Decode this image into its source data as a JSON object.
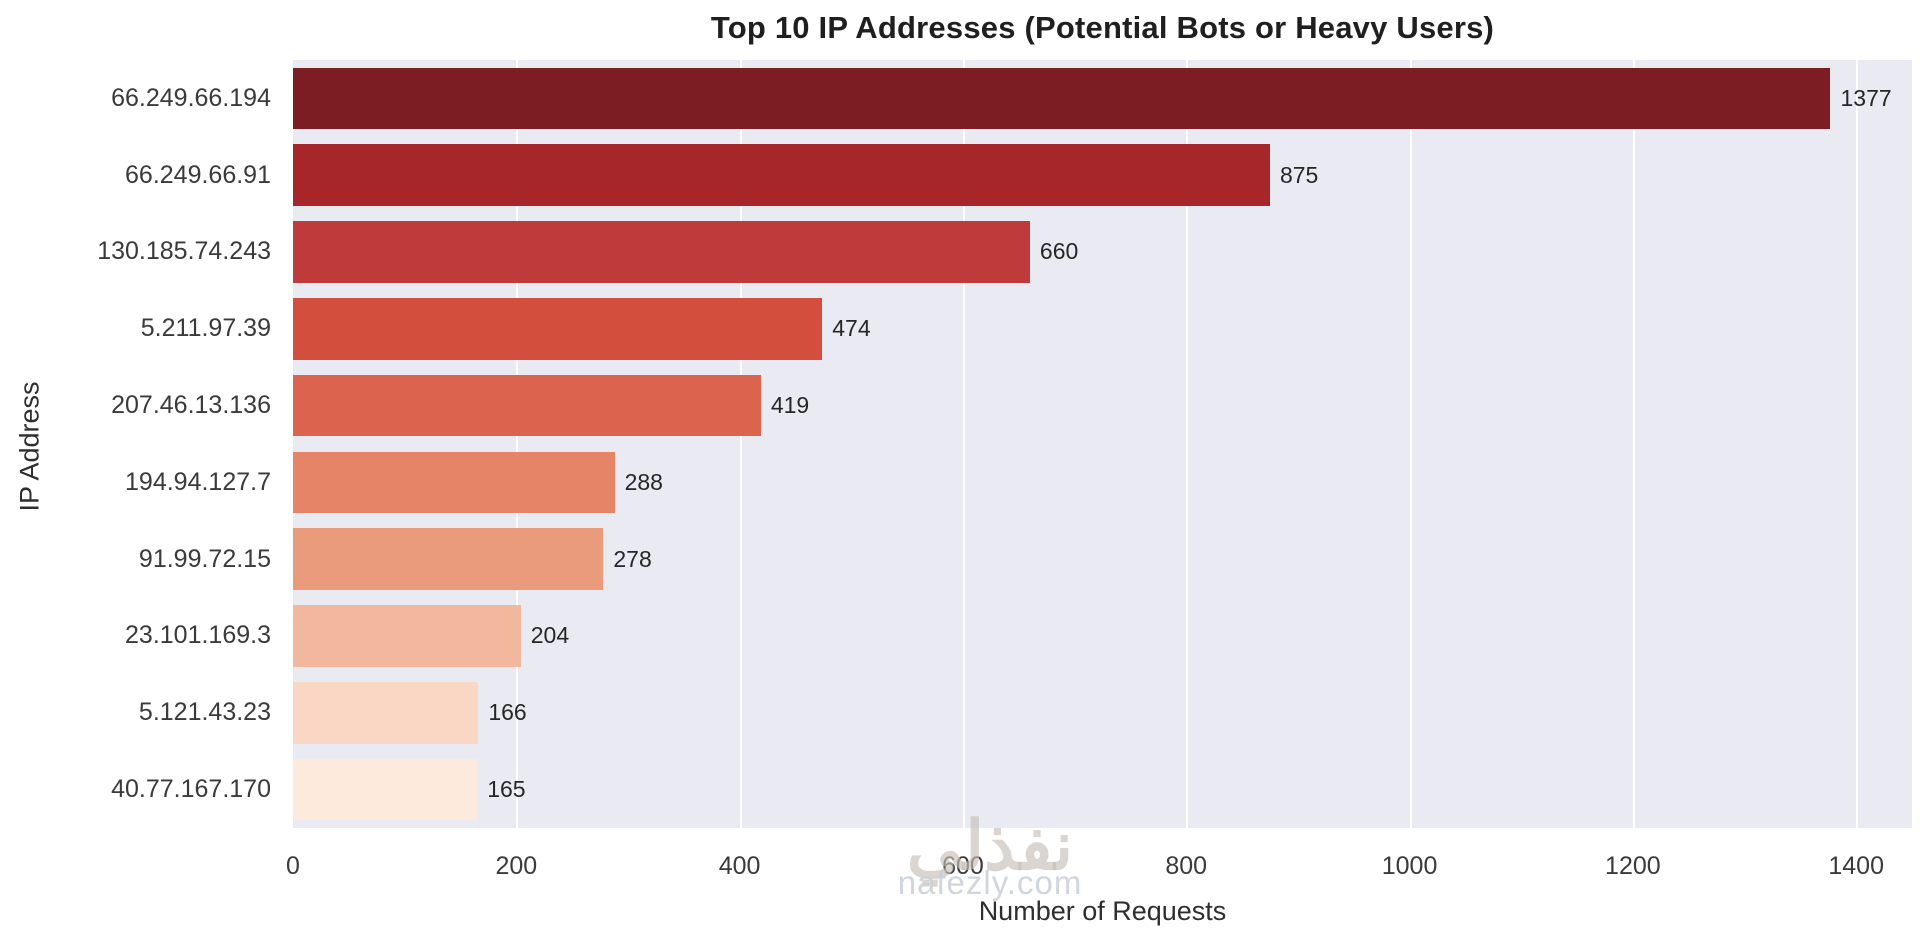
{
  "chart_data": {
    "type": "bar",
    "orientation": "horizontal",
    "title": "Top 10 IP Addresses (Potential Bots or Heavy Users)",
    "xlabel": "Number of Requests",
    "ylabel": "IP Address",
    "categories": [
      "66.249.66.194",
      "66.249.66.91",
      "130.185.74.243",
      "5.211.97.39",
      "207.46.13.136",
      "194.94.127.7",
      "91.99.72.15",
      "23.101.169.3",
      "5.121.43.23",
      "40.77.167.170"
    ],
    "values": [
      1377,
      875,
      660,
      474,
      419,
      288,
      278,
      204,
      166,
      165
    ],
    "bar_colors": [
      "#7b1d22",
      "#a62629",
      "#bf3a3a",
      "#d44e3e",
      "#dc634e",
      "#e68467",
      "#ea9b7b",
      "#f1b89d",
      "#f9d7c4",
      "#fdeadd"
    ],
    "xticks": [
      0,
      200,
      400,
      600,
      800,
      1000,
      1200,
      1400
    ],
    "xlim": [
      0,
      1450
    ],
    "grid": true,
    "legend": false,
    "plot_background": "#eaeaf2",
    "gridline_color": "#ffffff",
    "value_labels_shown": true
  },
  "watermark": {
    "logo_text": "نفذلي",
    "site_text": "nafezly.com"
  }
}
